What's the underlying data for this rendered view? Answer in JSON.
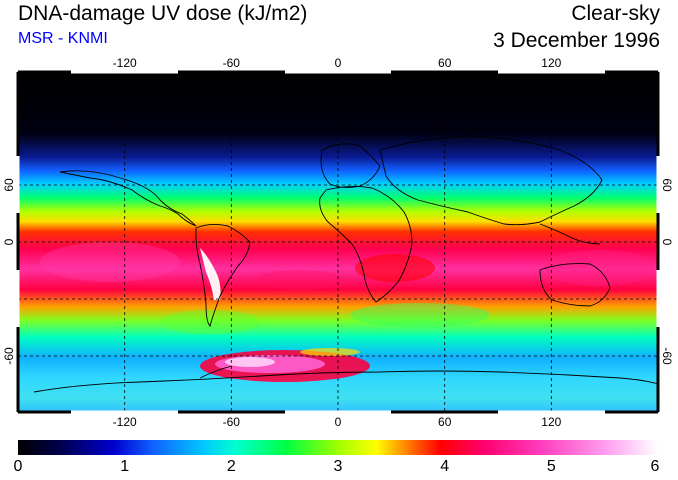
{
  "header": {
    "title": "DNA-damage UV dose (kJ/m2)",
    "subtitle": "MSR - KNMI",
    "condition": "Clear-sky",
    "date": "3 December 1996"
  },
  "map": {
    "lon_labels": [
      "-120",
      "-60",
      "0",
      "60",
      "120"
    ],
    "lat_labels": [
      "60",
      "0",
      "-60"
    ],
    "lon_range": [
      -180,
      180
    ],
    "lat_range": [
      -85,
      85
    ]
  },
  "legend": {
    "ticks": [
      "0",
      "1",
      "2",
      "3",
      "4",
      "5",
      "6"
    ],
    "range": [
      0,
      6
    ],
    "colors": [
      "#000000",
      "#0000d0",
      "#00c8ff",
      "#00ff40",
      "#ffff00",
      "#ff0000",
      "#ff40c0",
      "#ffffff"
    ]
  }
}
